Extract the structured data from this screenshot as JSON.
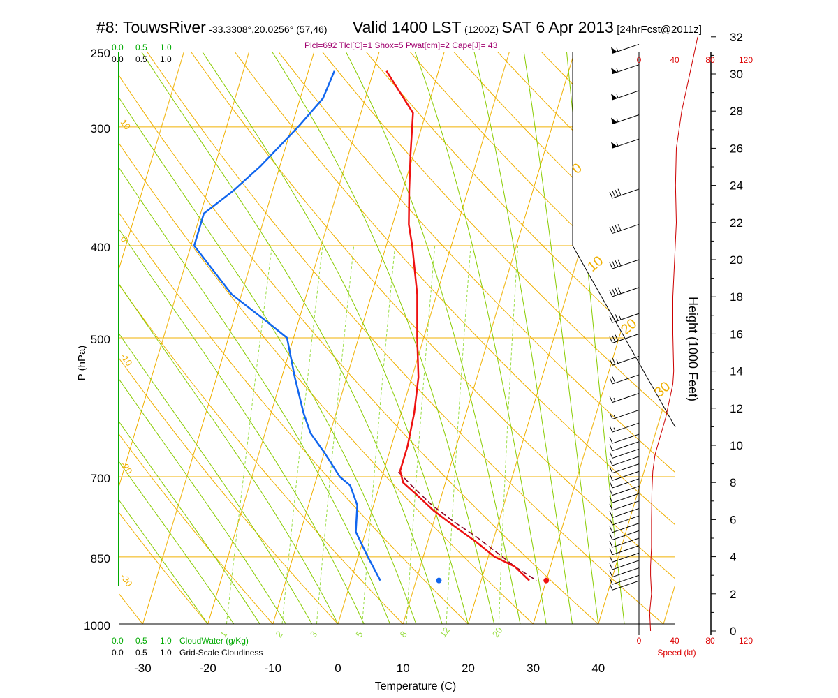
{
  "header": {
    "station": "#8: TouwsRiver",
    "coords": "-33.3308°,20.0256° (57,46)",
    "valid": "Valid 1400 LST",
    "zulu": "(1200Z)",
    "date": "SAT 6 Apr 2013",
    "fcst": "[24hrFcst@2011z]",
    "indices": "Plcl=692 Tlcl[C]=1 Shox=5 Pwat[cm]=2 Cape[J]= 43"
  },
  "chart_data": {
    "type": "skew-t",
    "xlabel": "Temperature (C)",
    "ylabel": "P (hPa)",
    "height_label": "Height (1000 Feet)",
    "speed_label": "Speed (kt)",
    "x_ticks": [
      -30,
      -20,
      -10,
      0,
      10,
      20,
      30,
      40
    ],
    "p_ticks": [
      250,
      300,
      400,
      500,
      700,
      850,
      1000
    ],
    "height_ticks": [
      0,
      2,
      4,
      6,
      8,
      10,
      12,
      14,
      16,
      18,
      20,
      22,
      24,
      26,
      28,
      30,
      32
    ],
    "speed_ticks": [
      "0",
      "40",
      "80",
      "120"
    ],
    "cloud_ticks": [
      "0.0",
      "0.5",
      "1.0"
    ],
    "cloudwater_label": "CloudWater (g/Kg)",
    "cloudiness_label": "Grid-Scale Cloudiness",
    "mixing_ratio_labels": [
      "1",
      "2",
      "3",
      "5",
      "8",
      "12",
      "20"
    ],
    "mixing_ratios": [
      1,
      2,
      3,
      5,
      8,
      12,
      20
    ],
    "isotherm_labels": [
      "10",
      "0",
      "-10",
      "-20",
      "-30"
    ],
    "box_isotherm_labels": [
      "0",
      "10",
      "20",
      "30"
    ],
    "temperature": {
      "color": "#ee1111",
      "points": [
        [
          262,
          -18
        ],
        [
          290,
          -12
        ],
        [
          320,
          -10.5
        ],
        [
          350,
          -9
        ],
        [
          380,
          -7.5
        ],
        [
          400,
          -6
        ],
        [
          450,
          -3
        ],
        [
          500,
          -1
        ],
        [
          550,
          1
        ],
        [
          600,
          2
        ],
        [
          650,
          2.5
        ],
        [
          690,
          2.5
        ],
        [
          710,
          3.5
        ],
        [
          730,
          6
        ],
        [
          760,
          9.5
        ],
        [
          790,
          13.5
        ],
        [
          820,
          17.5
        ],
        [
          850,
          21
        ],
        [
          870,
          24.5
        ],
        [
          900,
          27.4
        ]
      ]
    },
    "dewpoint": {
      "color": "#1166ee",
      "points": [
        [
          262,
          -26
        ],
        [
          280,
          -26.5
        ],
        [
          300,
          -29
        ],
        [
          330,
          -33
        ],
        [
          350,
          -36
        ],
        [
          370,
          -39.5
        ],
        [
          400,
          -39.5
        ],
        [
          450,
          -31.5
        ],
        [
          480,
          -25
        ],
        [
          500,
          -21
        ],
        [
          550,
          -18
        ],
        [
          600,
          -15
        ],
        [
          630,
          -13
        ],
        [
          660,
          -10
        ],
        [
          700,
          -6.5
        ],
        [
          715,
          -4.5
        ],
        [
          750,
          -2.5
        ],
        [
          800,
          -1.5
        ],
        [
          850,
          1.5
        ],
        [
          900,
          4.5
        ]
      ]
    },
    "parcel": {
      "color": "#880022",
      "points": [
        [
          692,
          2.3
        ],
        [
          720,
          5.5
        ],
        [
          750,
          9
        ],
        [
          780,
          13
        ],
        [
          810,
          17.3
        ],
        [
          840,
          21
        ],
        [
          870,
          24.5
        ],
        [
          900,
          28.5
        ]
      ]
    },
    "surface_temperature": 30,
    "surface_dewpoint": 13.5,
    "surface_pressure": 900,
    "wind_speed_profile": [
      [
        0,
        13
      ],
      [
        1,
        12
      ],
      [
        2,
        14
      ],
      [
        3,
        13
      ],
      [
        3.5,
        13
      ],
      [
        4.5,
        14
      ],
      [
        6,
        14
      ],
      [
        7.5,
        14.5
      ],
      [
        8.6,
        15.5
      ],
      [
        9.5,
        18
      ],
      [
        10.5,
        24
      ],
      [
        11.5,
        30
      ],
      [
        12.6,
        35
      ],
      [
        13.3,
        38
      ],
      [
        14,
        39
      ],
      [
        16,
        38
      ],
      [
        18,
        38
      ],
      [
        20,
        40
      ],
      [
        22,
        42
      ],
      [
        24,
        41
      ],
      [
        26,
        42
      ],
      [
        28,
        48
      ],
      [
        30,
        57
      ],
      [
        32,
        66
      ]
    ],
    "wind_barbs": [
      {
        "h": 31.6,
        "spd": 55
      },
      {
        "h": 30.5,
        "spd": 55
      },
      {
        "h": 29.1,
        "spd": 55
      },
      {
        "h": 27.8,
        "spd": 55
      },
      {
        "h": 26.5,
        "spd": 55
      },
      {
        "h": 23.8,
        "spd": 40
      },
      {
        "h": 21.9,
        "spd": 40
      },
      {
        "h": 20.0,
        "spd": 40
      },
      {
        "h": 18.5,
        "spd": 40
      },
      {
        "h": 17.1,
        "spd": 35
      },
      {
        "h": 16.0,
        "spd": 30
      },
      {
        "h": 14.8,
        "spd": 25
      },
      {
        "h": 13.8,
        "spd": 20
      },
      {
        "h": 12.8,
        "spd": 15
      },
      {
        "h": 11.9,
        "spd": 15
      },
      {
        "h": 11.2,
        "spd": 15
      },
      {
        "h": 10.6,
        "spd": 10
      },
      {
        "h": 10.2,
        "spd": 10
      },
      {
        "h": 9.8,
        "spd": 10
      },
      {
        "h": 9.4,
        "spd": 10
      },
      {
        "h": 9.0,
        "spd": 10
      },
      {
        "h": 8.6,
        "spd": 10
      },
      {
        "h": 8.2,
        "spd": 10
      },
      {
        "h": 7.8,
        "spd": 10
      },
      {
        "h": 7.4,
        "spd": 10
      },
      {
        "h": 7.0,
        "spd": 10
      },
      {
        "h": 6.6,
        "spd": 10
      },
      {
        "h": 6.2,
        "spd": 10
      },
      {
        "h": 5.8,
        "spd": 10
      },
      {
        "h": 5.4,
        "spd": 10
      },
      {
        "h": 5.0,
        "spd": 10
      },
      {
        "h": 4.6,
        "spd": 10
      },
      {
        "h": 4.2,
        "spd": 10
      },
      {
        "h": 3.8,
        "spd": 10
      },
      {
        "h": 3.4,
        "spd": 10
      },
      {
        "h": 3.0,
        "spd": 10
      },
      {
        "h": 2.7,
        "spd": 10
      }
    ],
    "colors": {
      "isotherm": "#f0b000",
      "dry_adiabat": "#88cc00",
      "moist_adiabat": "#88cc00",
      "mixing_ratio": "#99dd44",
      "cloud_axis": "#00aa00",
      "speed_axis": "#dd0000",
      "speed_profile": "#cc0000",
      "indices": "#a0006e"
    }
  }
}
